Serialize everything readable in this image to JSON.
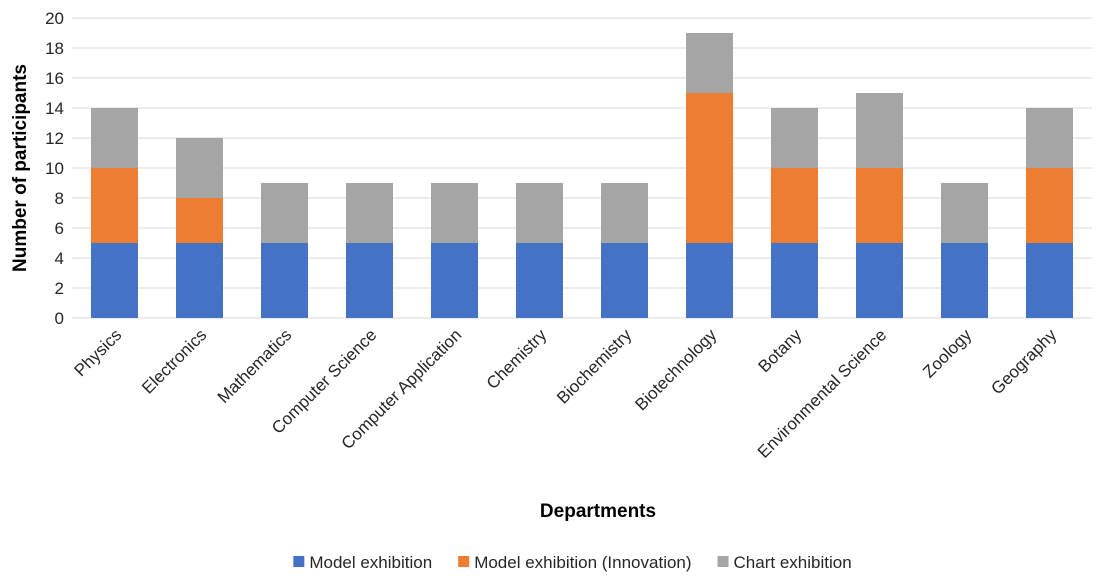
{
  "chart_data": {
    "type": "bar",
    "stacked": true,
    "title": "",
    "xlabel": "Departments",
    "ylabel": "Number of participants",
    "ylim": [
      0,
      20
    ],
    "ytick_step": 2,
    "grid": true,
    "legend_position": "bottom",
    "categories": [
      "Physics",
      "Electronics",
      "Mathematics",
      "Computer Science",
      "Computer Application",
      "Chemistry",
      "Biochemistry",
      "Biotechnology",
      "Botany",
      "Environmental Science",
      "Zoology",
      "Geography"
    ],
    "series": [
      {
        "name": "Model exhibition",
        "color": "#4472C4",
        "values": [
          5,
          5,
          5,
          5,
          5,
          5,
          5,
          5,
          5,
          5,
          5,
          5
        ]
      },
      {
        "name": "Model exhibition (Innovation)",
        "color": "#ED7D31",
        "values": [
          5,
          3,
          0,
          0,
          0,
          0,
          0,
          10,
          5,
          5,
          0,
          5
        ]
      },
      {
        "name": "Chart exhibition",
        "color": "#A5A5A5",
        "values": [
          4,
          4,
          4,
          4,
          4,
          4,
          4,
          4,
          4,
          5,
          4,
          4
        ]
      }
    ]
  }
}
